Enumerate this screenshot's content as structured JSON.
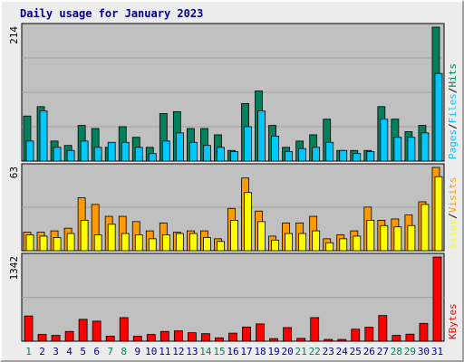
{
  "chart_data": {
    "type": "bar",
    "title": "Daily usage for January 2023",
    "days": [
      "1",
      "2",
      "3",
      "4",
      "5",
      "6",
      "7",
      "8",
      "9",
      "10",
      "11",
      "12",
      "13",
      "14",
      "15",
      "16",
      "17",
      "18",
      "19",
      "20",
      "21",
      "22",
      "23",
      "24",
      "25",
      "26",
      "27",
      "28",
      "29",
      "30",
      "31"
    ],
    "weekend_days": [
      "1",
      "7",
      "8",
      "14",
      "15",
      "21",
      "22",
      "28",
      "29"
    ],
    "panels": [
      {
        "name": "hits_files_pages",
        "ymax": 214,
        "ymax_label": "214",
        "legend": [
          "Pages",
          "Files",
          "Hits"
        ],
        "series": [
          {
            "name": "Hits",
            "color": "#00805c",
            "values": [
              72,
              87,
              32,
              25,
              57,
              52,
              22,
              55,
              38,
              22,
              76,
              79,
              52,
              52,
              42,
              17,
              92,
              112,
              57,
              22,
              32,
              42,
              67,
              17,
              17,
              17,
              87,
              67,
              47,
              57,
              214
            ]
          },
          {
            "name": "Files",
            "color": "#00c8ff",
            "values": [
              32,
              80,
              22,
              17,
              32,
              22,
              30,
              30,
              22,
              12,
              32,
              45,
              30,
              25,
              22,
              15,
              55,
              80,
              40,
              15,
              20,
              22,
              30,
              17,
              12,
              15,
              67,
              38,
              38,
              45,
              140
            ]
          },
          {
            "name": "Pages",
            "color": "#00c8ff",
            "values": [
              0,
              0,
              0,
              0,
              0,
              0,
              0,
              0,
              0,
              0,
              0,
              0,
              0,
              0,
              0,
              0,
              0,
              0,
              0,
              0,
              0,
              0,
              0,
              0,
              0,
              0,
              0,
              0,
              0,
              0,
              0
            ]
          }
        ]
      },
      {
        "name": "visits_sites",
        "ymax": 63,
        "ymax_label": "63",
        "legend": [
          "Sites",
          "Visits"
        ],
        "series": [
          {
            "name": "Visits",
            "color": "#ff9a00",
            "values": [
              14,
              14,
              15,
              17,
              40,
              35,
              26,
              26,
              22,
              15,
              21,
              14,
              15,
              15,
              9,
              32,
              55,
              30,
              11,
              21,
              21,
              26,
              9,
              12,
              15,
              33,
              23,
              24,
              27,
              37,
              63
            ]
          },
          {
            "name": "Sites",
            "color": "#ffff00",
            "values": [
              12,
              11,
              10,
              13,
              23,
              12,
              20,
              13,
              12,
              9,
              12,
              13,
              13,
              10,
              7,
              23,
              44,
              22,
              8,
              13,
              13,
              15,
              6,
              9,
              11,
              23,
              19,
              18,
              19,
              35,
              56
            ]
          }
        ]
      },
      {
        "name": "kbytes",
        "ymax": 1342,
        "ymax_label": "1342",
        "legend": [
          "KBytes"
        ],
        "series": [
          {
            "name": "KBytes",
            "color": "#ff0000",
            "values": [
              402,
              107,
              93,
              155,
              349,
              320,
              80,
              376,
              78,
              107,
              155,
              165,
              135,
              120,
              54,
              128,
              226,
              276,
              41,
              217,
              45,
              376,
              28,
              28,
              191,
              222,
              409,
              93,
              112,
              284,
              1342
            ]
          }
        ]
      }
    ]
  }
}
